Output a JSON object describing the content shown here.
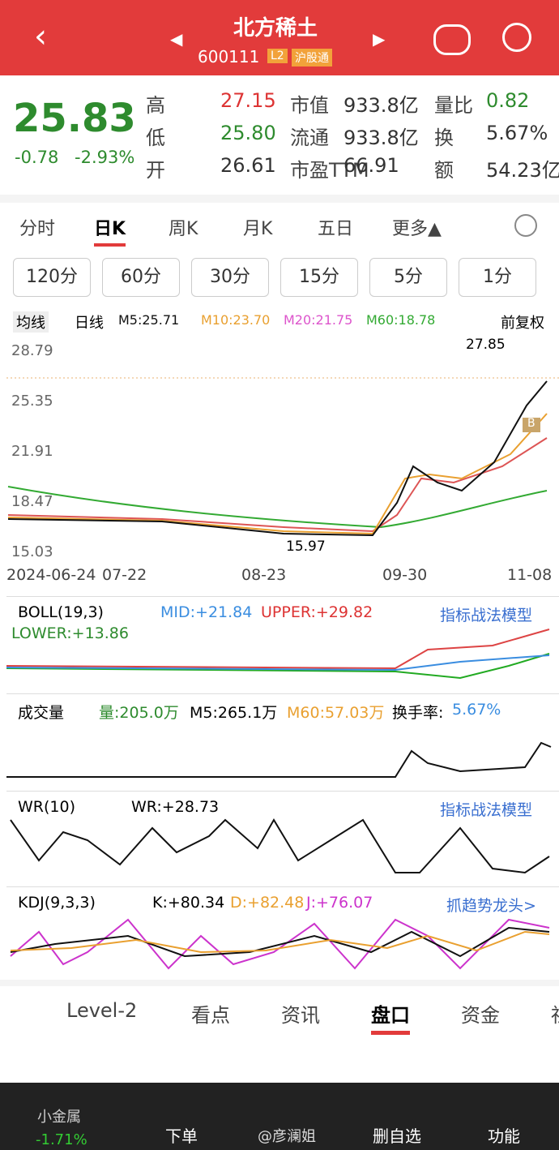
{
  "header": {
    "title": "北方稀土",
    "code": "600111",
    "badges": [
      "L2",
      "沪股通"
    ]
  },
  "quote": {
    "price": "25.83",
    "change": "-0.78",
    "pct": "-2.93%",
    "stats": [
      [
        {
          "k": "高",
          "v": "27.15"
        },
        {
          "k": "市值",
          "v": "933.8亿"
        },
        {
          "k": "量比",
          "v": "0.82"
        }
      ],
      [
        {
          "k": "低",
          "v": "25.80"
        },
        {
          "k": "流通",
          "v": "933.8亿"
        },
        {
          "k": "换",
          "v": "5.67%"
        }
      ],
      [
        {
          "k": "开",
          "v": "26.61"
        },
        {
          "k": "市盈TTM",
          "v": "66.91"
        },
        {
          "k": "额",
          "v": "54.23亿"
        }
      ]
    ]
  },
  "tabs": [
    "分时",
    "日K",
    "周K",
    "月K",
    "五日",
    "更多▲"
  ],
  "periods": [
    "120分",
    "60分",
    "30分",
    "15分",
    "5分",
    "1分"
  ],
  "ma": {
    "selector": "均线",
    "line": "日线",
    "items": [
      "M5:25.71",
      "M10:23.70",
      "M20:21.75",
      "M60:18.78"
    ],
    "adjust": "前复权"
  },
  "price_axis": [
    "28.79",
    "25.35",
    "21.91",
    "18.47",
    "15.03"
  ],
  "annotations": {
    "high": "27.85",
    "low": "15.97",
    "buy": "B"
  },
  "dates": [
    "2024-06-24",
    "07-22",
    "08-23",
    "09-30",
    "11-08"
  ],
  "boll": {
    "name": "BOLL(19,3)",
    "mid": "MID:+21.84",
    "upper": "UPPER:+29.82",
    "lower": "LOWER:+13.86",
    "link": "指标战法模型"
  },
  "volume": {
    "name": "成交量",
    "vol": "量:205.0万",
    "m5": "M5:265.1万",
    "m60": "M60:57.03万",
    "turnover_label": "换手率:",
    "turnover": "5.67%"
  },
  "wr": {
    "name": "WR(10)",
    "value": "WR:+28.73",
    "link": "指标战法模型"
  },
  "kdj": {
    "name": "KDJ(9,3,3)",
    "k": "K:+80.34",
    "d": "D:+82.48",
    "j": "J:+76.07",
    "link": "抓趋势龙头>"
  },
  "bottom_tabs": [
    "Level-2",
    "看点",
    "资讯",
    "盘口",
    "资金",
    "社"
  ],
  "footer": {
    "sector": "小金属",
    "sector_change": "-1.71%",
    "buttons": [
      "下单",
      "删自选",
      "功能"
    ],
    "watermark": "@彦澜姐"
  }
}
